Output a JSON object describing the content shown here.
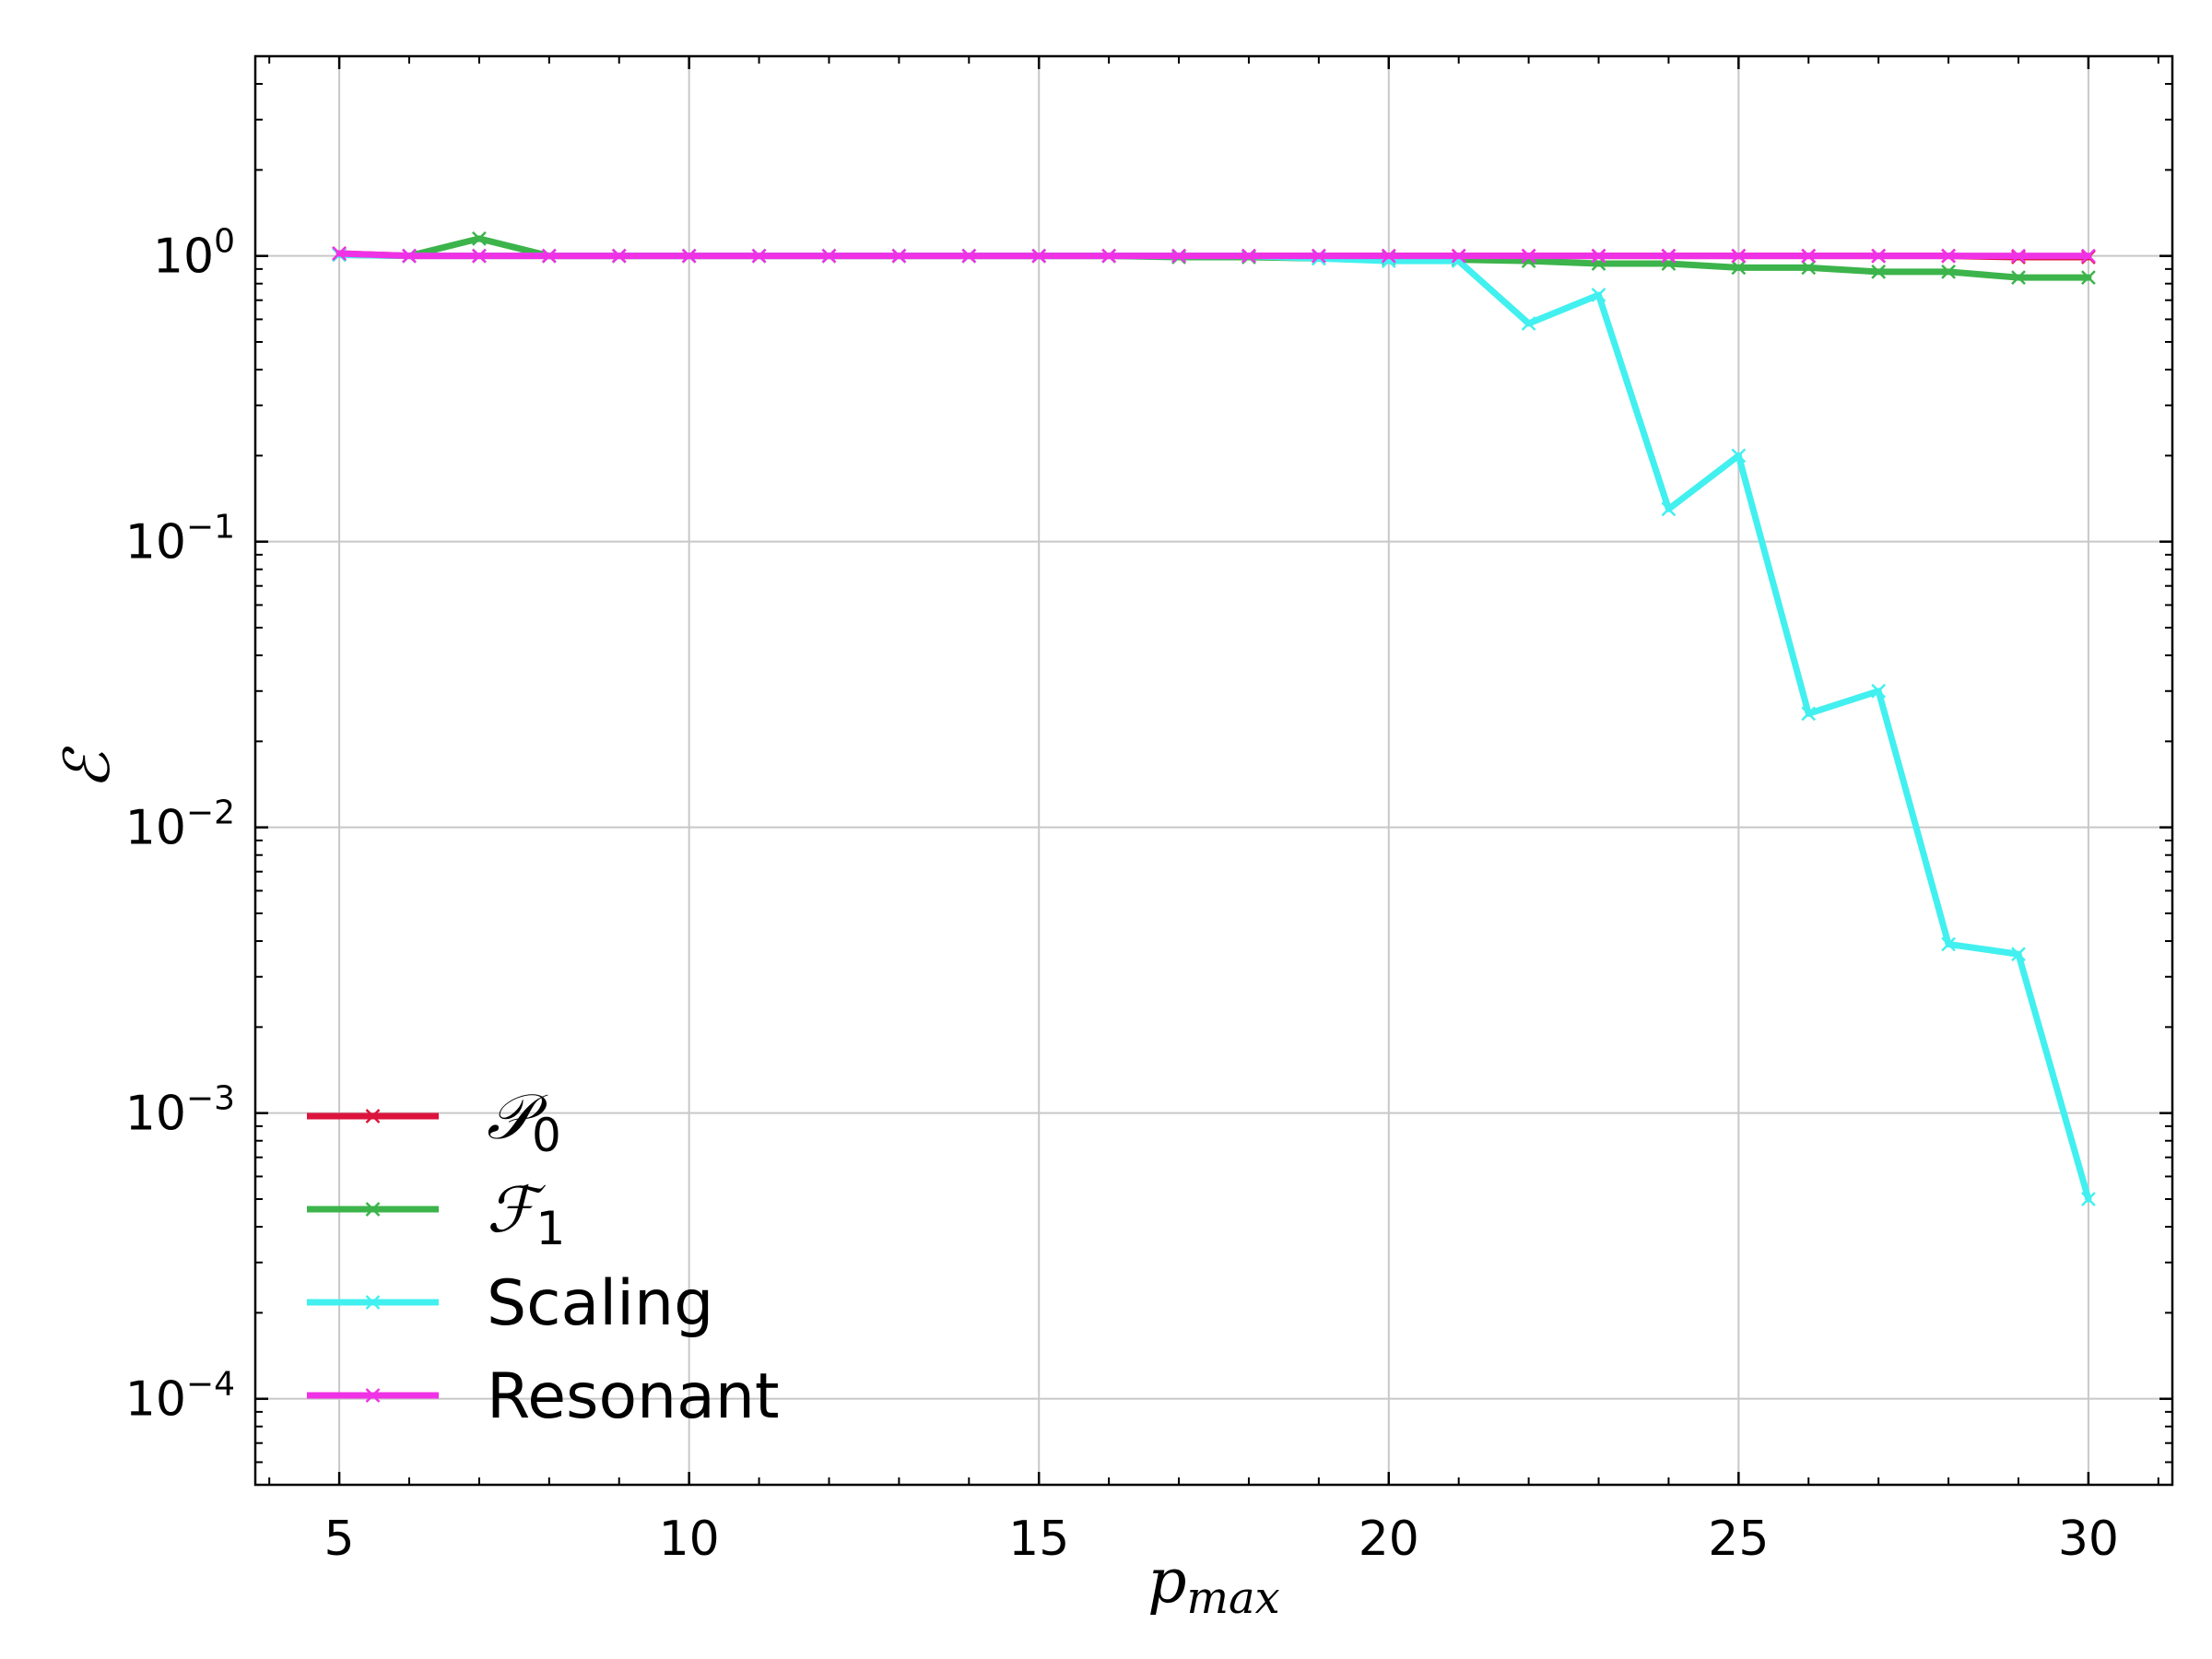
{
  "chart_data": {
    "type": "line",
    "title": "",
    "xlabel": "p",
    "xlabel_subscript": "max",
    "ylabel": "ℰ",
    "x_scale": "linear",
    "y_scale": "log",
    "xlim": [
      3.8,
      31.2
    ],
    "ylim": [
      5e-05,
      5
    ],
    "grid": true,
    "legend_position": "lower-left",
    "x_ticks": [
      5,
      10,
      15,
      20,
      25,
      30
    ],
    "y_ticks": [
      {
        "value": 1,
        "base": "10",
        "exp": "0"
      },
      {
        "value": 0.1,
        "base": "10",
        "exp": "−1"
      },
      {
        "value": 0.01,
        "base": "10",
        "exp": "−2"
      },
      {
        "value": 0.001,
        "base": "10",
        "exp": "−3"
      },
      {
        "value": 0.0001,
        "base": "10",
        "exp": "−4"
      }
    ],
    "x": [
      5,
      6,
      7,
      8,
      9,
      10,
      11,
      12,
      13,
      14,
      15,
      16,
      17,
      18,
      19,
      20,
      21,
      22,
      23,
      24,
      25,
      26,
      27,
      28,
      29,
      30
    ],
    "series": [
      {
        "name": "𝒫",
        "name_subscript": "0",
        "color": "#dc143c",
        "values": [
          1.02,
          1.0,
          1.0,
          1.0,
          1.0,
          1.0,
          1.0,
          1.0,
          1.0,
          1.0,
          1.0,
          1.0,
          1.0,
          1.0,
          1.0,
          1.0,
          1.0,
          1.0,
          1.0,
          1.0,
          1.0,
          1.0,
          1.0,
          1.0,
          0.99,
          0.99
        ]
      },
      {
        "name": "ℱ",
        "name_subscript": "1",
        "color": "#3cb44b",
        "values": [
          1.01,
          1.0,
          1.15,
          1.0,
          1.0,
          1.0,
          1.0,
          1.0,
          1.0,
          1.0,
          1.0,
          1.0,
          0.99,
          0.99,
          0.98,
          0.98,
          0.97,
          0.96,
          0.94,
          0.94,
          0.91,
          0.91,
          0.88,
          0.88,
          0.84,
          0.84
        ]
      },
      {
        "name": "Scaling",
        "name_subscript": "",
        "color": "#42f0f0",
        "values": [
          1.01,
          1.0,
          1.0,
          1.0,
          1.0,
          1.0,
          1.0,
          1.0,
          1.0,
          1.0,
          1.0,
          1.0,
          1.0,
          1.0,
          0.98,
          0.96,
          0.96,
          0.58,
          0.73,
          0.13,
          0.2,
          0.025,
          0.03,
          0.0039,
          0.0036,
          0.0005
        ]
      },
      {
        "name": "Resonant",
        "name_subscript": "",
        "color": "#f032e6",
        "values": [
          1.02,
          1.0,
          1.0,
          1.0,
          1.0,
          1.0,
          1.0,
          1.0,
          1.0,
          1.0,
          1.0,
          1.0,
          1.0,
          1.0,
          1.0,
          1.0,
          1.0,
          1.0,
          1.0,
          1.0,
          1.0,
          1.0,
          1.0,
          1.0,
          1.0,
          1.0
        ]
      }
    ]
  }
}
